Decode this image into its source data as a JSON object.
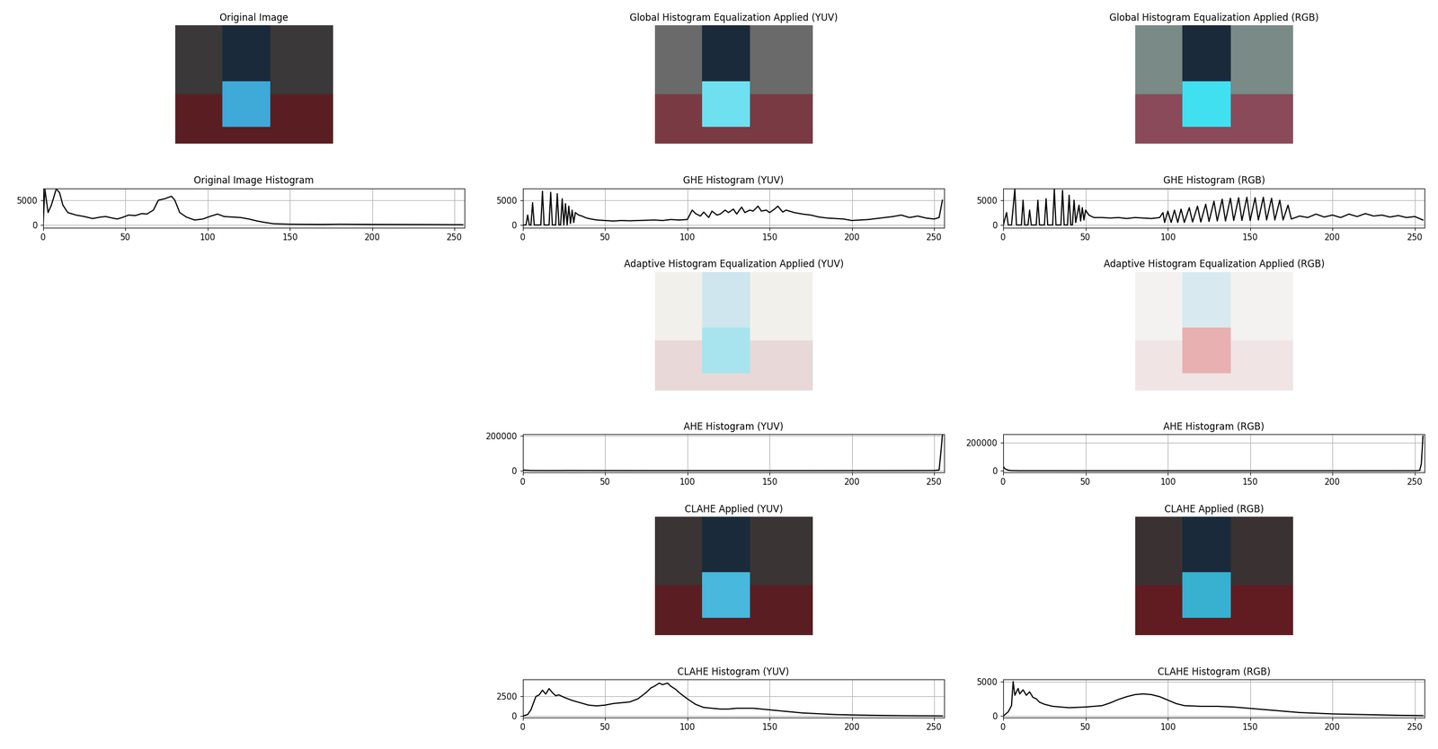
{
  "chart_data": [
    {
      "type": "image",
      "title": "Original Image"
    },
    {
      "type": "line",
      "title": "Original Image Histogram",
      "color": "#000000",
      "grid": true,
      "x": [
        0,
        1,
        3,
        5,
        8,
        10,
        12,
        15,
        20,
        25,
        30,
        35,
        38,
        42,
        45,
        48,
        52,
        56,
        60,
        63,
        67,
        70,
        74,
        78,
        80,
        83,
        87,
        92,
        97,
        102,
        106,
        110,
        115,
        120,
        125,
        130,
        135,
        140,
        150,
        170,
        180,
        200,
        230,
        255
      ],
      "values": [
        0,
        7300,
        2500,
        4000,
        7300,
        6500,
        4000,
        2500,
        2000,
        1700,
        1300,
        1600,
        1700,
        1400,
        1200,
        1500,
        2000,
        1900,
        2300,
        2200,
        3000,
        5000,
        5300,
        5800,
        5000,
        2500,
        1600,
        1000,
        1200,
        1800,
        2200,
        1700,
        1600,
        1500,
        1200,
        800,
        500,
        250,
        150,
        100,
        150,
        100,
        80,
        50
      ],
      "xlim": [
        0,
        256
      ],
      "xticks": [
        0,
        50,
        100,
        150,
        200,
        250
      ],
      "ylim": [
        -550,
        7400
      ],
      "yticks": [
        0,
        5000
      ]
    },
    {
      "type": "image",
      "title": "Global Histogram Equalization Applied (YUV)"
    },
    {
      "type": "line",
      "title": "GHE Histogram (YUV)",
      "color": "#000000",
      "grid": true,
      "x": [
        0,
        2,
        3,
        4,
        5,
        6,
        7,
        11,
        12,
        13,
        16,
        17,
        18,
        20,
        21,
        22,
        23,
        24,
        25,
        26,
        27,
        28,
        29,
        30,
        31,
        32,
        34,
        36,
        38,
        40,
        45,
        50,
        55,
        60,
        65,
        70,
        75,
        80,
        85,
        90,
        95,
        100,
        103,
        105,
        108,
        110,
        113,
        115,
        118,
        120,
        123,
        125,
        128,
        130,
        133,
        135,
        138,
        140,
        143,
        145,
        148,
        150,
        153,
        155,
        158,
        160,
        165,
        170,
        175,
        180,
        185,
        190,
        195,
        200,
        205,
        210,
        215,
        220,
        225,
        230,
        235,
        240,
        245,
        250,
        253,
        255
      ],
      "values": [
        0,
        0,
        2000,
        0,
        0,
        4500,
        0,
        0,
        6800,
        0,
        0,
        6600,
        0,
        0,
        6300,
        0,
        0,
        5300,
        0,
        4300,
        0,
        3800,
        300,
        3000,
        500,
        2500,
        2000,
        1800,
        1500,
        1300,
        1000,
        900,
        800,
        900,
        850,
        900,
        950,
        1000,
        900,
        1100,
        1000,
        1100,
        3000,
        2300,
        1800,
        2600,
        1500,
        2800,
        2000,
        2200,
        3000,
        2500,
        3200,
        2200,
        3600,
        2500,
        3000,
        2800,
        3800,
        2800,
        3000,
        2500,
        3200,
        3800,
        2600,
        3000,
        2500,
        2200,
        2000,
        1600,
        1400,
        1300,
        1200,
        900,
        1000,
        1100,
        1300,
        1500,
        1700,
        2000,
        1500,
        1800,
        1400,
        1200,
        1500,
        5000
      ],
      "xlim": [
        0,
        256
      ],
      "xticks": [
        0,
        50,
        100,
        150,
        200,
        250
      ],
      "ylim": [
        -550,
        7400
      ],
      "yticks": [
        0,
        5000
      ]
    },
    {
      "type": "image",
      "title": "Global Histogram Equalization Applied (RGB)"
    },
    {
      "type": "line",
      "title": "GHE Histogram (RGB)",
      "color": "#000000",
      "grid": true,
      "x": [
        0,
        2,
        3,
        5,
        7,
        8,
        11,
        12,
        13,
        15,
        16,
        17,
        20,
        21,
        22,
        25,
        26,
        27,
        30,
        31,
        32,
        35,
        36,
        37,
        39,
        40,
        41,
        42,
        43,
        44,
        46,
        47,
        48,
        49,
        50,
        52,
        55,
        60,
        65,
        70,
        75,
        80,
        85,
        90,
        95,
        97,
        98,
        100,
        102,
        104,
        106,
        108,
        110,
        113,
        115,
        118,
        120,
        123,
        125,
        128,
        130,
        133,
        135,
        138,
        140,
        143,
        145,
        148,
        150,
        153,
        155,
        158,
        160,
        163,
        165,
        168,
        170,
        173,
        175,
        180,
        185,
        190,
        195,
        200,
        205,
        210,
        215,
        220,
        225,
        230,
        235,
        240,
        245,
        250,
        255
      ],
      "values": [
        0,
        2500,
        0,
        0,
        7200,
        0,
        0,
        5000,
        0,
        0,
        3000,
        0,
        0,
        5000,
        0,
        0,
        5300,
        0,
        0,
        7200,
        0,
        0,
        7000,
        0,
        0,
        6000,
        0,
        0,
        5000,
        500,
        4000,
        800,
        3500,
        1000,
        3000,
        2000,
        1500,
        1500,
        1400,
        1500,
        1300,
        1500,
        1400,
        1300,
        1500,
        2500,
        500,
        2800,
        500,
        3000,
        500,
        3200,
        500,
        3500,
        600,
        3800,
        600,
        4200,
        700,
        4800,
        800,
        5200,
        800,
        5400,
        900,
        5500,
        900,
        5600,
        900,
        5500,
        1000,
        5600,
        1000,
        5400,
        1000,
        5000,
        1000,
        4000,
        1200,
        1800,
        1500,
        2200,
        1600,
        2000,
        1500,
        2200,
        1700,
        2300,
        1800,
        2000,
        1600,
        1900,
        1500,
        1700,
        1000
      ],
      "xlim": [
        0,
        256
      ],
      "xticks": [
        0,
        50,
        100,
        150,
        200,
        250
      ],
      "ylim": [
        -550,
        7400
      ],
      "yticks": [
        0,
        5000
      ]
    },
    {
      "type": "image",
      "title": "Adaptive Histogram Equalization Applied (YUV)"
    },
    {
      "type": "line",
      "title": "AHE Histogram (YUV)",
      "color": "#000000",
      "grid": true,
      "x": [
        0,
        5,
        10,
        20,
        30,
        40,
        50,
        75,
        100,
        125,
        150,
        175,
        200,
        225,
        250,
        253,
        254,
        255
      ],
      "values": [
        5000,
        2000,
        1500,
        1500,
        2000,
        1800,
        1500,
        1200,
        1200,
        1200,
        1200,
        1200,
        1300,
        1500,
        2000,
        5000,
        100000,
        205000
      ],
      "xlim": [
        0,
        256
      ],
      "xticks": [
        0,
        50,
        100,
        150,
        200,
        250
      ],
      "ylim": [
        -10000,
        210000
      ],
      "yticks": [
        0,
        200000
      ]
    },
    {
      "type": "image",
      "title": "Adaptive Histogram Equalization Applied (RGB)"
    },
    {
      "type": "line",
      "title": "AHE Histogram (RGB)",
      "color": "#000000",
      "grid": true,
      "x": [
        0,
        1,
        3,
        5,
        10,
        50,
        100,
        150,
        200,
        250,
        253,
        254,
        255
      ],
      "values": [
        30000,
        15000,
        5000,
        2000,
        1000,
        800,
        800,
        800,
        800,
        1000,
        3000,
        50000,
        245000
      ],
      "xlim": [
        0,
        256
      ],
      "xticks": [
        0,
        50,
        100,
        150,
        200,
        250
      ],
      "ylim": [
        -12000,
        256000
      ],
      "yticks": [
        0,
        200000
      ]
    },
    {
      "type": "image",
      "title": "CLAHE Applied (YUV)"
    },
    {
      "type": "line",
      "title": "CLAHE Histogram (YUV)",
      "color": "#000000",
      "grid": true,
      "x": [
        0,
        3,
        5,
        8,
        10,
        12,
        14,
        16,
        18,
        20,
        22,
        25,
        30,
        35,
        40,
        45,
        50,
        55,
        60,
        65,
        70,
        75,
        78,
        80,
        83,
        85,
        88,
        90,
        93,
        95,
        100,
        105,
        110,
        115,
        120,
        125,
        130,
        135,
        140,
        145,
        150,
        160,
        170,
        180,
        190,
        200,
        220,
        240,
        250,
        255
      ],
      "values": [
        0,
        200,
        800,
        2500,
        2700,
        3300,
        2800,
        3500,
        3000,
        2600,
        2700,
        2400,
        2000,
        1700,
        1400,
        1300,
        1400,
        1600,
        1700,
        1800,
        2200,
        3000,
        3600,
        3800,
        4200,
        4000,
        4200,
        3800,
        3400,
        3000,
        2200,
        1500,
        1100,
        1000,
        900,
        900,
        1000,
        1000,
        1000,
        900,
        800,
        600,
        400,
        300,
        200,
        150,
        80,
        40,
        30,
        20
      ],
      "xlim": [
        0,
        256
      ],
      "xticks": [
        0,
        50,
        100,
        150,
        200,
        250
      ],
      "ylim": [
        -220,
        4640
      ],
      "yticks": [
        0,
        2500
      ]
    },
    {
      "type": "image",
      "title": "CLAHE Applied (RGB)"
    },
    {
      "type": "line",
      "title": "CLAHE Histogram (RGB)",
      "color": "#000000",
      "grid": true,
      "x": [
        0,
        3,
        5,
        6,
        7,
        9,
        10,
        12,
        14,
        16,
        18,
        20,
        22,
        25,
        30,
        40,
        50,
        60,
        65,
        70,
        75,
        80,
        85,
        90,
        95,
        100,
        105,
        110,
        120,
        130,
        140,
        150,
        160,
        170,
        180,
        190,
        200,
        220,
        240,
        255
      ],
      "values": [
        0,
        600,
        1500,
        5000,
        3000,
        4000,
        3200,
        3800,
        3000,
        3500,
        2700,
        2500,
        2000,
        1700,
        1400,
        1200,
        1300,
        1500,
        1900,
        2400,
        2800,
        3100,
        3200,
        3100,
        2800,
        2300,
        1800,
        1500,
        1400,
        1400,
        1300,
        1100,
        900,
        700,
        500,
        400,
        300,
        200,
        100,
        50
      ],
      "xlim": [
        0,
        256
      ],
      "xticks": [
        0,
        50,
        100,
        150,
        200,
        250
      ],
      "ylim": [
        -270,
        5270
      ],
      "yticks": [
        0,
        5000
      ]
    }
  ]
}
